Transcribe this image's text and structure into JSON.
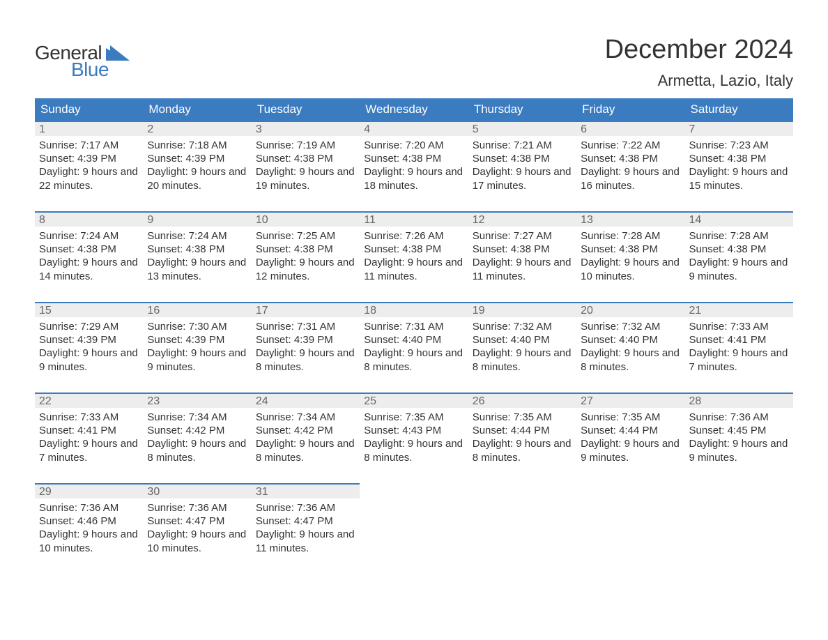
{
  "brand": {
    "top": "General",
    "bottom": "Blue",
    "text_color": "#333333",
    "accent_color": "#3b7bbf"
  },
  "title": "December 2024",
  "location": "Armetta, Lazio, Italy",
  "colors": {
    "header_bg": "#3b7bbf",
    "header_text": "#ffffff",
    "band_bg": "#ededed",
    "band_border": "#3b7bbf",
    "daynum_text": "#666666",
    "body_text": "#333333",
    "page_bg": "#ffffff"
  },
  "typography": {
    "title_fontsize": 38,
    "subtitle_fontsize": 22,
    "header_fontsize": 17,
    "body_fontsize": 15
  },
  "day_headers": [
    "Sunday",
    "Monday",
    "Tuesday",
    "Wednesday",
    "Thursday",
    "Friday",
    "Saturday"
  ],
  "weeks": [
    [
      {
        "n": "1",
        "sunrise": "7:17 AM",
        "sunset": "4:39 PM",
        "daylight": "9 hours and 22 minutes."
      },
      {
        "n": "2",
        "sunrise": "7:18 AM",
        "sunset": "4:39 PM",
        "daylight": "9 hours and 20 minutes."
      },
      {
        "n": "3",
        "sunrise": "7:19 AM",
        "sunset": "4:38 PM",
        "daylight": "9 hours and 19 minutes."
      },
      {
        "n": "4",
        "sunrise": "7:20 AM",
        "sunset": "4:38 PM",
        "daylight": "9 hours and 18 minutes."
      },
      {
        "n": "5",
        "sunrise": "7:21 AM",
        "sunset": "4:38 PM",
        "daylight": "9 hours and 17 minutes."
      },
      {
        "n": "6",
        "sunrise": "7:22 AM",
        "sunset": "4:38 PM",
        "daylight": "9 hours and 16 minutes."
      },
      {
        "n": "7",
        "sunrise": "7:23 AM",
        "sunset": "4:38 PM",
        "daylight": "9 hours and 15 minutes."
      }
    ],
    [
      {
        "n": "8",
        "sunrise": "7:24 AM",
        "sunset": "4:38 PM",
        "daylight": "9 hours and 14 minutes."
      },
      {
        "n": "9",
        "sunrise": "7:24 AM",
        "sunset": "4:38 PM",
        "daylight": "9 hours and 13 minutes."
      },
      {
        "n": "10",
        "sunrise": "7:25 AM",
        "sunset": "4:38 PM",
        "daylight": "9 hours and 12 minutes."
      },
      {
        "n": "11",
        "sunrise": "7:26 AM",
        "sunset": "4:38 PM",
        "daylight": "9 hours and 11 minutes."
      },
      {
        "n": "12",
        "sunrise": "7:27 AM",
        "sunset": "4:38 PM",
        "daylight": "9 hours and 11 minutes."
      },
      {
        "n": "13",
        "sunrise": "7:28 AM",
        "sunset": "4:38 PM",
        "daylight": "9 hours and 10 minutes."
      },
      {
        "n": "14",
        "sunrise": "7:28 AM",
        "sunset": "4:38 PM",
        "daylight": "9 hours and 9 minutes."
      }
    ],
    [
      {
        "n": "15",
        "sunrise": "7:29 AM",
        "sunset": "4:39 PM",
        "daylight": "9 hours and 9 minutes."
      },
      {
        "n": "16",
        "sunrise": "7:30 AM",
        "sunset": "4:39 PM",
        "daylight": "9 hours and 9 minutes."
      },
      {
        "n": "17",
        "sunrise": "7:31 AM",
        "sunset": "4:39 PM",
        "daylight": "9 hours and 8 minutes."
      },
      {
        "n": "18",
        "sunrise": "7:31 AM",
        "sunset": "4:40 PM",
        "daylight": "9 hours and 8 minutes."
      },
      {
        "n": "19",
        "sunrise": "7:32 AM",
        "sunset": "4:40 PM",
        "daylight": "9 hours and 8 minutes."
      },
      {
        "n": "20",
        "sunrise": "7:32 AM",
        "sunset": "4:40 PM",
        "daylight": "9 hours and 8 minutes."
      },
      {
        "n": "21",
        "sunrise": "7:33 AM",
        "sunset": "4:41 PM",
        "daylight": "9 hours and 7 minutes."
      }
    ],
    [
      {
        "n": "22",
        "sunrise": "7:33 AM",
        "sunset": "4:41 PM",
        "daylight": "9 hours and 7 minutes."
      },
      {
        "n": "23",
        "sunrise": "7:34 AM",
        "sunset": "4:42 PM",
        "daylight": "9 hours and 8 minutes."
      },
      {
        "n": "24",
        "sunrise": "7:34 AM",
        "sunset": "4:42 PM",
        "daylight": "9 hours and 8 minutes."
      },
      {
        "n": "25",
        "sunrise": "7:35 AM",
        "sunset": "4:43 PM",
        "daylight": "9 hours and 8 minutes."
      },
      {
        "n": "26",
        "sunrise": "7:35 AM",
        "sunset": "4:44 PM",
        "daylight": "9 hours and 8 minutes."
      },
      {
        "n": "27",
        "sunrise": "7:35 AM",
        "sunset": "4:44 PM",
        "daylight": "9 hours and 9 minutes."
      },
      {
        "n": "28",
        "sunrise": "7:36 AM",
        "sunset": "4:45 PM",
        "daylight": "9 hours and 9 minutes."
      }
    ],
    [
      {
        "n": "29",
        "sunrise": "7:36 AM",
        "sunset": "4:46 PM",
        "daylight": "9 hours and 10 minutes."
      },
      {
        "n": "30",
        "sunrise": "7:36 AM",
        "sunset": "4:47 PM",
        "daylight": "9 hours and 10 minutes."
      },
      {
        "n": "31",
        "sunrise": "7:36 AM",
        "sunset": "4:47 PM",
        "daylight": "9 hours and 11 minutes."
      },
      null,
      null,
      null,
      null
    ]
  ],
  "labels": {
    "sunrise": "Sunrise:",
    "sunset": "Sunset:",
    "daylight": "Daylight:"
  }
}
